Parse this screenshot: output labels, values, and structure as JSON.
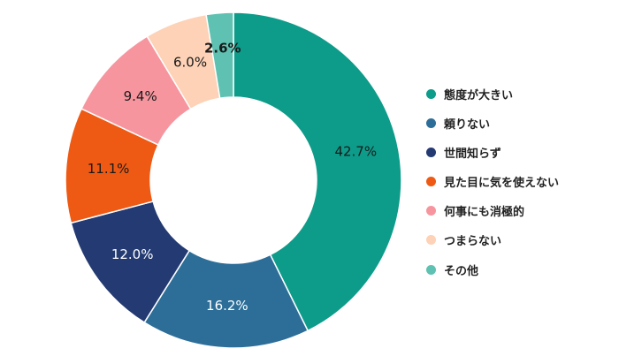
{
  "chart_data": {
    "type": "pie",
    "donut": true,
    "title": "",
    "legend_position": "right",
    "categories": [
      "態度が大きい",
      "頼りない",
      "世間知らず",
      "見た目に気を使えない",
      "何事にも消極的",
      "つまらない",
      "その他"
    ],
    "values": [
      42.7,
      16.2,
      12.0,
      11.1,
      9.4,
      6.0,
      2.6
    ],
    "data_labels": [
      "42.7%",
      "16.2%",
      "12.0%",
      "11.1%",
      "9.4%",
      "6.0%",
      "2.6%"
    ],
    "colors": [
      "#0d9c8a",
      "#2d6e99",
      "#233a72",
      "#ee5a14",
      "#f7959f",
      "#fdd2b6",
      "#5ec1b1"
    ],
    "label_colors": [
      "#1a1a1a",
      "#ffffff",
      "#ffffff",
      "#1a1a1a",
      "#1a1a1a",
      "#1a1a1a",
      "#1a1a1a"
    ]
  }
}
